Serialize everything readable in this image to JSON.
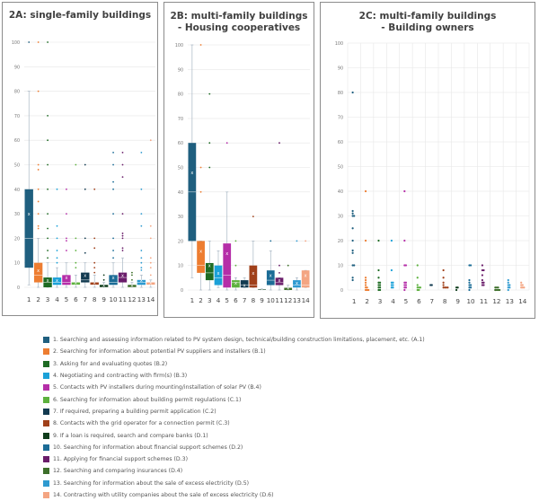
{
  "legend": [
    {
      "label": "1. Searching and assessing information related to PV system design, technical/building construction limitations, placement, etc. (A.1)",
      "color": "#1f5f7f"
    },
    {
      "label": "2. Searching for information about potential PV suppliers and installers (B.1)",
      "color": "#ed7d31"
    },
    {
      "label": "3. Asking for and evaluating quotes (B.2)",
      "color": "#1e6b23"
    },
    {
      "label": "4. Negotiating and contracting with firm(s) (B.3)",
      "color": "#1ba1d8"
    },
    {
      "label": "5. Contacts with PV installers during mounting/installation of solar PV (B.4)",
      "color": "#b52ea8"
    },
    {
      "label": "6. Searching for information about building permit regulations (C.1)",
      "color": "#5db13e"
    },
    {
      "label": "7. If required, preparing a building permit application (C.2)",
      "color": "#123a50"
    },
    {
      "label": "8. Contacts with the grid operator for a connection permit (C.3)",
      "color": "#a0401a"
    },
    {
      "label": "9. If a loan is required, search and compare banks (D.1)",
      "color": "#0f3d1c"
    },
    {
      "label": "10. Searching for information about financial support schemes (D.2)",
      "color": "#1b6c96"
    },
    {
      "label": "11. Applying for financial support schemes (D.3)",
      "color": "#6a1d6a"
    },
    {
      "label": "12. Searching and comparing insurances (D.4)",
      "color": "#3d6f2a"
    },
    {
      "label": "13. Searching for information about the sale of excess electricity (D.5)",
      "color": "#2e9ad0"
    },
    {
      "label": "14. Contracting with utility companies about the sale of excess electricity (D.6)",
      "color": "#f4a582"
    }
  ],
  "chart_data": [
    {
      "type": "box",
      "title": "2A: single-family buildings",
      "title_lines": [
        "2A: single-family buildings"
      ],
      "categories": [
        "1",
        "2",
        "3",
        "4",
        "5",
        "6",
        "7",
        "8",
        "9",
        "10",
        "11",
        "12",
        "13",
        "14"
      ],
      "ylim": [
        0,
        100
      ],
      "yticks": [
        "0",
        "10",
        "20",
        "30",
        "40",
        "50",
        "60",
        "70",
        "80",
        "90",
        "100"
      ],
      "grid": true,
      "boxes": [
        {
          "min": 1,
          "q1": 8,
          "median": 20,
          "q3": 40,
          "max": 80,
          "mean": 30,
          "outliers": [
            100
          ]
        },
        {
          "min": 0,
          "q1": 2,
          "median": 5,
          "q3": 10,
          "max": 20,
          "mean": 7,
          "outliers": [
            24,
            25,
            30,
            35,
            40,
            48,
            50,
            80,
            100
          ]
        },
        {
          "min": 0,
          "q1": 0,
          "median": 2,
          "q3": 4,
          "max": 10,
          "mean": 3,
          "outliers": [
            12,
            15,
            20,
            24,
            30,
            40,
            50,
            60,
            70,
            100
          ]
        },
        {
          "min": 0,
          "q1": 1,
          "median": 2,
          "q3": 4,
          "max": 8,
          "mean": 3,
          "outliers": [
            10,
            12,
            15,
            20,
            25,
            40
          ]
        },
        {
          "min": 0,
          "q1": 1,
          "median": 2,
          "q3": 5,
          "max": 10,
          "mean": 4,
          "outliers": [
            15,
            19,
            20,
            30,
            40
          ]
        },
        {
          "min": 0,
          "q1": 1,
          "median": 1,
          "q3": 2,
          "max": 5,
          "mean": 2,
          "outliers": [
            8,
            10,
            15,
            20,
            50
          ]
        },
        {
          "min": 0,
          "q1": 2,
          "median": 3,
          "q3": 6,
          "max": 10,
          "mean": 5,
          "outliers": [
            14,
            20,
            40,
            50
          ]
        },
        {
          "min": 0,
          "q1": 1,
          "median": 1,
          "q3": 2,
          "max": 5,
          "mean": 2,
          "outliers": [
            6,
            8,
            10,
            16,
            20,
            40
          ]
        },
        {
          "min": 0,
          "q1": 0,
          "median": 0,
          "q3": 1,
          "max": 2,
          "mean": 1,
          "outliers": [
            3,
            5
          ]
        },
        {
          "min": 0,
          "q1": 1,
          "median": 2,
          "q3": 5,
          "max": 10,
          "mean": 4,
          "outliers": [
            12,
            15,
            20,
            30,
            40,
            43,
            50,
            55
          ]
        },
        {
          "min": 0,
          "q1": 2,
          "median": 4,
          "q3": 6,
          "max": 12,
          "mean": 5,
          "outliers": [
            15,
            16,
            20,
            21,
            22,
            30,
            45,
            50,
            55
          ]
        },
        {
          "min": 0,
          "q1": 0,
          "median": 0,
          "q3": 1,
          "max": 2,
          "mean": 1,
          "outliers": [
            3,
            5,
            6
          ]
        },
        {
          "min": 0,
          "q1": 1,
          "median": 2,
          "q3": 3,
          "max": 5,
          "mean": 3,
          "outliers": [
            7,
            8,
            10,
            12,
            15,
            25,
            30,
            40,
            55
          ]
        },
        {
          "min": 0,
          "q1": 1,
          "median": 1,
          "q3": 2,
          "max": 3,
          "mean": 2,
          "outliers": [
            5,
            8,
            10,
            12,
            20,
            25,
            60
          ]
        }
      ]
    },
    {
      "type": "box",
      "title": "2B: multi-family buildings - Housing cooperatives",
      "title_lines": [
        "2B: multi-family buildings",
        "- Housing cooperatives"
      ],
      "categories": [
        "1",
        "2",
        "3",
        "4",
        "5",
        "6",
        "7",
        "8",
        "9",
        "10",
        "11",
        "12",
        "13",
        "14"
      ],
      "ylim": [
        0,
        100
      ],
      "yticks": [
        "0",
        "10",
        "20",
        "30",
        "40",
        "50",
        "60",
        "70",
        "80",
        "90",
        "100"
      ],
      "grid": true,
      "boxes": [
        {
          "min": 5,
          "q1": 20,
          "median": 40,
          "q3": 60,
          "max": 100,
          "mean": 48,
          "outliers": []
        },
        {
          "min": 0,
          "q1": 7,
          "median": 10,
          "q3": 20,
          "max": 20,
          "mean": 16,
          "outliers": [
            40,
            50,
            100
          ]
        },
        {
          "min": 0,
          "q1": 4,
          "median": 7,
          "q3": 11,
          "max": 20,
          "mean": 10,
          "outliers": [
            50,
            60,
            80
          ]
        },
        {
          "min": 1,
          "q1": 2,
          "median": 5,
          "q3": 10,
          "max": 16,
          "mean": 7,
          "outliers": []
        },
        {
          "min": 0,
          "q1": 1,
          "median": 6,
          "q3": 19,
          "max": 40,
          "mean": 15,
          "outliers": [
            60
          ]
        },
        {
          "min": 0,
          "q1": 1,
          "median": 3,
          "q3": 4,
          "max": 5,
          "mean": 3,
          "outliers": [
            10,
            20
          ]
        },
        {
          "min": 1,
          "q1": 1,
          "median": 2,
          "q3": 4,
          "max": 5,
          "mean": 2,
          "outliers": []
        },
        {
          "min": 1,
          "q1": 1,
          "median": 2,
          "q3": 10,
          "max": 20,
          "mean": 7,
          "outliers": [
            30
          ]
        },
        {
          "min": 0,
          "q1": 0,
          "median": 0,
          "q3": 0.3,
          "max": 0.5,
          "mean": 0.2,
          "outliers": []
        },
        {
          "min": 0,
          "q1": 2,
          "median": 4,
          "q3": 8,
          "max": 16,
          "mean": 6,
          "outliers": [
            20
          ]
        },
        {
          "min": 0,
          "q1": 2,
          "median": 3,
          "q3": 5,
          "max": 5,
          "mean": 4,
          "outliers": [
            7,
            10,
            60
          ]
        },
        {
          "min": 0,
          "q1": 0,
          "median": 1,
          "q3": 1,
          "max": 2,
          "mean": 1,
          "outliers": [
            10
          ]
        },
        {
          "min": 0,
          "q1": 1,
          "median": 2,
          "q3": 4,
          "max": 5,
          "mean": 3,
          "outliers": [
            20
          ]
        },
        {
          "min": 1,
          "q1": 1,
          "median": 2,
          "q3": 8,
          "max": 8,
          "mean": 6,
          "outliers": [
            20
          ]
        }
      ]
    },
    {
      "type": "scatter",
      "title": "2C: multi-family buildings - Building owners",
      "title_lines": [
        "2C: multi-family buildings",
        "- Building owners"
      ],
      "categories": [
        "1",
        "2",
        "3",
        "4",
        "5",
        "6",
        "7",
        "8",
        "9",
        "10",
        "11",
        "12",
        "13",
        "14"
      ],
      "ylim": [
        0,
        100
      ],
      "yticks": [
        "0",
        "10",
        "20",
        "30",
        "40",
        "50",
        "60",
        "70",
        "80",
        "90",
        "100"
      ],
      "grid": true,
      "points": [
        [
          4,
          5,
          10,
          10,
          15,
          16,
          20,
          25,
          30,
          30,
          31,
          32,
          80
        ],
        [
          0,
          0,
          0,
          1,
          1,
          2,
          3,
          4,
          5,
          20,
          40
        ],
        [
          0,
          0,
          1,
          1,
          2,
          2,
          3,
          3,
          5,
          8,
          20
        ],
        [
          1,
          1,
          2,
          2,
          3,
          3,
          8,
          20
        ],
        [
          0,
          1,
          1,
          2,
          2,
          3,
          3,
          10,
          10,
          20,
          40
        ],
        [
          0,
          0,
          1,
          1,
          1,
          2,
          5,
          10
        ],
        [
          2,
          2
        ],
        [
          1,
          1,
          1,
          1,
          2,
          3,
          5,
          8
        ],
        [
          0,
          1,
          1
        ],
        [
          0,
          1,
          1,
          2,
          2,
          3,
          4,
          10,
          10
        ],
        [
          2,
          2,
          3,
          3,
          4,
          6,
          8,
          8,
          10
        ],
        [
          0,
          0,
          0,
          0,
          0,
          1,
          1,
          1
        ],
        [
          0,
          1,
          1,
          2,
          2,
          3,
          4
        ],
        [
          1,
          1,
          1,
          2,
          2,
          3
        ]
      ]
    }
  ]
}
